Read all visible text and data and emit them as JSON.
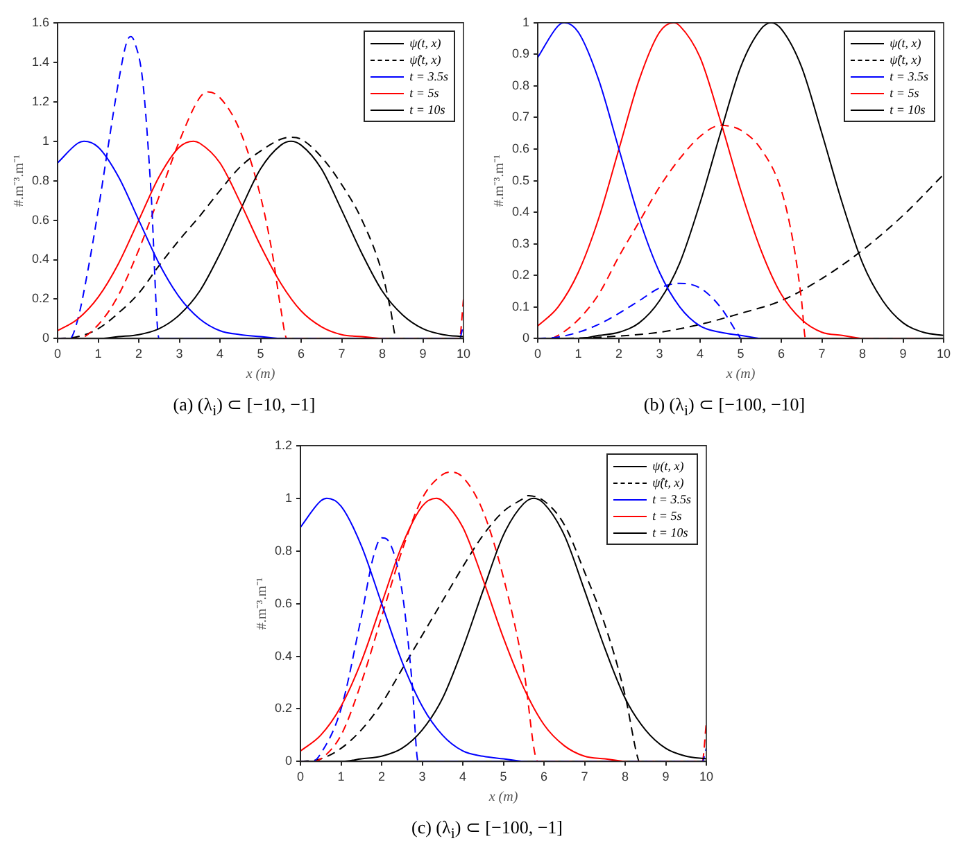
{
  "chart_data": [
    {
      "type": "line",
      "xlabel": "x (m)",
      "ylabel": "#.m⁻³.m⁻¹",
      "xlim": [
        0,
        10
      ],
      "xticks": [
        0,
        1,
        2,
        3,
        4,
        5,
        6,
        7,
        8,
        9,
        10
      ],
      "ylim": [
        0,
        1.6
      ],
      "yticks": [
        0,
        0.2,
        0.4,
        0.6,
        0.8,
        1,
        1.2,
        1.4,
        1.6
      ],
      "grid": false,
      "legend": "top right",
      "annotations": [
        "(a) (λ$_{i}$) ⊂ [−10, −1]"
      ],
      "series": [
        {
          "name": "ψ(t, x)",
          "color": "#000000",
          "line_style": "solid"
        },
        {
          "name": "ψ̂(t, x)",
          "color": "#000000",
          "line_style": "dashed"
        },
        {
          "name": "t = 3.5s",
          "color": "#0000ff",
          "line_style": "solid",
          "x": [
            0,
            0.5,
            0.65,
            1,
            1.5,
            2,
            2.5,
            3,
            3.5,
            4,
            4.5,
            5,
            5.5
          ],
          "values": [
            0.89,
            0.99,
            1,
            0.97,
            0.82,
            0.6,
            0.38,
            0.21,
            0.1,
            0.04,
            0.02,
            0.01,
            0
          ]
        },
        {
          "name": "t = 5s",
          "color": "#ff0000",
          "line_style": "solid",
          "x": [
            0,
            0.5,
            1,
            1.5,
            2,
            2.5,
            3,
            3.35,
            3.5,
            4,
            4.5,
            5,
            5.5,
            6,
            6.5,
            7,
            7.5,
            8
          ],
          "values": [
            0.04,
            0.1,
            0.21,
            0.38,
            0.6,
            0.82,
            0.97,
            1,
            0.99,
            0.89,
            0.69,
            0.47,
            0.28,
            0.14,
            0.06,
            0.02,
            0.01,
            0
          ]
        },
        {
          "name": "t = 10s",
          "color": "#000000",
          "line_style": "solid",
          "x": [
            0,
            1,
            1.5,
            2,
            2.5,
            3,
            3.5,
            4,
            4.5,
            5,
            5.5,
            5.75,
            6,
            6.5,
            7,
            7.5,
            8,
            8.5,
            9,
            9.5,
            10
          ],
          "values": [
            0,
            0,
            0.01,
            0.02,
            0.05,
            0.12,
            0.24,
            0.43,
            0.65,
            0.86,
            0.98,
            1,
            0.98,
            0.86,
            0.65,
            0.43,
            0.24,
            0.12,
            0.05,
            0.02,
            0.01
          ]
        },
        {
          "color": "#0000ff",
          "line_style": "dashed",
          "x": [
            0,
            0.3,
            0.5,
            0.75,
            1,
            1.25,
            1.5,
            1.7,
            1.8,
            1.9,
            2.1,
            2.3,
            2.5,
            9.9,
            10
          ],
          "values": [
            0,
            0,
            0.1,
            0.35,
            0.65,
            0.98,
            1.3,
            1.5,
            1.53,
            1.5,
            1.3,
            0.75,
            0,
            0,
            0.07
          ]
        },
        {
          "color": "#ff0000",
          "line_style": "dashed",
          "x": [
            0,
            0.5,
            1,
            1.5,
            2,
            2.5,
            3,
            3.5,
            3.7,
            4,
            4.5,
            5,
            5.3,
            5.5,
            5.65,
            9.9,
            10
          ],
          "values": [
            0,
            0,
            0.07,
            0.22,
            0.45,
            0.72,
            1,
            1.22,
            1.25,
            1.22,
            1.05,
            0.72,
            0.42,
            0.15,
            0,
            0,
            0.2
          ]
        },
        {
          "color": "#000000",
          "line_style": "dashed",
          "x": [
            0,
            0.5,
            1,
            1.5,
            2,
            2.5,
            3,
            3.5,
            4,
            4.5,
            5,
            5.5,
            5.75,
            6,
            6.5,
            7,
            7.5,
            8,
            8.2,
            8.35,
            10
          ],
          "values": [
            0,
            0.01,
            0.05,
            0.13,
            0.23,
            0.37,
            0.5,
            0.62,
            0.75,
            0.87,
            0.95,
            1.01,
            1.02,
            1.01,
            0.92,
            0.78,
            0.6,
            0.33,
            0.15,
            0,
            0
          ]
        }
      ]
    },
    {
      "type": "line",
      "xlabel": "x (m)",
      "ylabel": "#.m⁻³.m⁻¹",
      "xlim": [
        0,
        10
      ],
      "xticks": [
        0,
        1,
        2,
        3,
        4,
        5,
        6,
        7,
        8,
        9,
        10
      ],
      "ylim": [
        0,
        1
      ],
      "yticks": [
        0,
        0.1,
        0.2,
        0.3,
        0.4,
        0.5,
        0.6,
        0.7,
        0.8,
        0.9,
        1
      ],
      "grid": false,
      "legend": "top right",
      "annotations": [
        "(b) (λ$_{i}$) ⊂ [−100, −10]"
      ],
      "series": [
        {
          "name": "ψ(t, x)",
          "color": "#000000",
          "line_style": "solid"
        },
        {
          "name": "ψ̂(t, x)",
          "color": "#000000",
          "line_style": "dashed"
        },
        {
          "name": "t = 3.5s",
          "color": "#0000ff",
          "line_style": "solid",
          "x": [
            0,
            0.5,
            0.65,
            1,
            1.5,
            2,
            2.5,
            3,
            3.5,
            4,
            4.5,
            5,
            5.5
          ],
          "values": [
            0.89,
            0.99,
            1,
            0.97,
            0.82,
            0.6,
            0.38,
            0.21,
            0.1,
            0.04,
            0.02,
            0.01,
            0
          ]
        },
        {
          "name": "t = 5s",
          "color": "#ff0000",
          "line_style": "solid",
          "x": [
            0,
            0.5,
            1,
            1.5,
            2,
            2.5,
            3,
            3.35,
            3.5,
            4,
            4.5,
            5,
            5.5,
            6,
            6.5,
            7,
            7.5,
            8
          ],
          "values": [
            0.04,
            0.1,
            0.21,
            0.38,
            0.6,
            0.82,
            0.97,
            1,
            0.99,
            0.89,
            0.69,
            0.47,
            0.28,
            0.14,
            0.06,
            0.02,
            0.01,
            0
          ]
        },
        {
          "name": "t = 10s",
          "color": "#000000",
          "line_style": "solid",
          "x": [
            0,
            1,
            1.5,
            2,
            2.5,
            3,
            3.5,
            4,
            4.5,
            5,
            5.5,
            5.75,
            6,
            6.5,
            7,
            7.5,
            8,
            8.5,
            9,
            9.5,
            10
          ],
          "values": [
            0,
            0,
            0.01,
            0.02,
            0.05,
            0.12,
            0.24,
            0.43,
            0.65,
            0.86,
            0.98,
            1,
            0.98,
            0.86,
            0.65,
            0.43,
            0.24,
            0.12,
            0.05,
            0.02,
            0.01
          ]
        },
        {
          "color": "#0000ff",
          "line_style": "dashed",
          "x": [
            0,
            0.5,
            1,
            1.5,
            2,
            2.5,
            3,
            3.5,
            4,
            4.5,
            4.9,
            5
          ],
          "values": [
            0,
            0.005,
            0.02,
            0.045,
            0.08,
            0.12,
            0.16,
            0.175,
            0.16,
            0.1,
            0.02,
            0
          ]
        },
        {
          "color": "#ff0000",
          "line_style": "dashed",
          "x": [
            0,
            0.3,
            0.5,
            1,
            1.5,
            2,
            2.5,
            3,
            3.5,
            4,
            4.5,
            5,
            5.5,
            6,
            6.3,
            6.5,
            6.6,
            9.5
          ],
          "values": [
            0,
            0,
            0.01,
            0.06,
            0.14,
            0.26,
            0.37,
            0.48,
            0.57,
            0.64,
            0.675,
            0.66,
            0.6,
            0.47,
            0.3,
            0.12,
            0,
            0
          ]
        },
        {
          "color": "#000000",
          "line_style": "dashed",
          "x": [
            0,
            1,
            2,
            3,
            4,
            5,
            6,
            7,
            8,
            9,
            10
          ],
          "values": [
            0,
            0.002,
            0.008,
            0.02,
            0.045,
            0.08,
            0.12,
            0.19,
            0.28,
            0.39,
            0.52
          ]
        }
      ]
    },
    {
      "type": "line",
      "xlabel": "x (m)",
      "ylabel": "#.m⁻³.m⁻¹",
      "xlim": [
        0,
        10
      ],
      "xticks": [
        0,
        1,
        2,
        3,
        4,
        5,
        6,
        7,
        8,
        9,
        10
      ],
      "ylim": [
        0,
        1.2
      ],
      "yticks": [
        0,
        0.2,
        0.4,
        0.6,
        0.8,
        1,
        1.2
      ],
      "grid": false,
      "legend": "top right",
      "annotations": [
        "(c) (λ$_{i}$) ⊂ [−100, −1]"
      ],
      "series": [
        {
          "name": "ψ(t, x)",
          "color": "#000000",
          "line_style": "solid"
        },
        {
          "name": "ψ̂(t, x)",
          "color": "#000000",
          "line_style": "dashed"
        },
        {
          "name": "t = 3.5s",
          "color": "#0000ff",
          "line_style": "solid",
          "x": [
            0,
            0.5,
            0.65,
            1,
            1.5,
            2,
            2.5,
            3,
            3.5,
            4,
            4.5,
            5,
            5.5
          ],
          "values": [
            0.89,
            0.99,
            1,
            0.97,
            0.82,
            0.6,
            0.38,
            0.21,
            0.1,
            0.04,
            0.02,
            0.01,
            0
          ]
        },
        {
          "name": "t = 5s",
          "color": "#ff0000",
          "line_style": "solid",
          "x": [
            0,
            0.5,
            1,
            1.5,
            2,
            2.5,
            3,
            3.35,
            3.5,
            4,
            4.5,
            5,
            5.5,
            6,
            6.5,
            7,
            7.5,
            8
          ],
          "values": [
            0.04,
            0.1,
            0.21,
            0.38,
            0.6,
            0.82,
            0.97,
            1,
            0.99,
            0.89,
            0.69,
            0.47,
            0.28,
            0.14,
            0.06,
            0.02,
            0.01,
            0
          ]
        },
        {
          "name": "t = 10s",
          "color": "#000000",
          "line_style": "solid",
          "x": [
            0,
            1,
            1.5,
            2,
            2.5,
            3,
            3.5,
            4,
            4.5,
            5,
            5.5,
            5.75,
            6,
            6.5,
            7,
            7.5,
            8,
            8.5,
            9,
            9.5,
            10
          ],
          "values": [
            0,
            0,
            0.01,
            0.02,
            0.05,
            0.12,
            0.24,
            0.43,
            0.65,
            0.86,
            0.98,
            1,
            0.98,
            0.86,
            0.65,
            0.43,
            0.24,
            0.12,
            0.05,
            0.02,
            0.01
          ]
        },
        {
          "color": "#0000ff",
          "line_style": "dashed",
          "x": [
            0,
            0.3,
            0.5,
            1,
            1.5,
            1.8,
            2,
            2.2,
            2.5,
            2.75,
            2.9,
            9.9,
            10
          ],
          "values": [
            0,
            0,
            0.03,
            0.2,
            0.55,
            0.78,
            0.85,
            0.83,
            0.65,
            0.3,
            0,
            0,
            0.05
          ]
        },
        {
          "color": "#ff0000",
          "line_style": "dashed",
          "x": [
            0,
            0.3,
            0.5,
            1,
            1.5,
            2,
            2.5,
            3,
            3.5,
            3.7,
            4,
            4.5,
            5,
            5.5,
            5.85,
            9.9,
            10
          ],
          "values": [
            0,
            0,
            0.01,
            0.1,
            0.3,
            0.55,
            0.8,
            1,
            1.09,
            1.1,
            1.08,
            0.95,
            0.7,
            0.35,
            0,
            0,
            0.15
          ]
        },
        {
          "color": "#000000",
          "line_style": "dashed",
          "x": [
            0,
            0.5,
            1,
            1.5,
            2,
            2.5,
            3,
            3.5,
            4,
            4.5,
            5,
            5.5,
            5.6,
            6,
            6.5,
            7,
            7.5,
            8,
            8.3,
            8.35,
            10
          ],
          "values": [
            0,
            0.01,
            0.05,
            0.12,
            0.22,
            0.35,
            0.48,
            0.61,
            0.74,
            0.86,
            0.95,
            1,
            1.01,
            0.99,
            0.9,
            0.72,
            0.52,
            0.25,
            0.02,
            0,
            0
          ]
        }
      ]
    }
  ]
}
